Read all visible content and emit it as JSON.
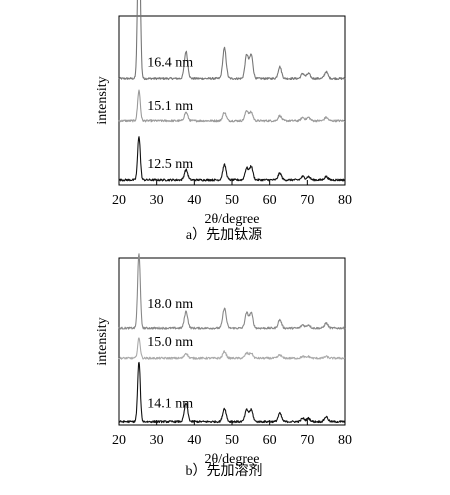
{
  "chart_data": [
    {
      "type": "line",
      "caption": "a）先加钛源",
      "xlabel": "2θ/degree",
      "ylabel": "intensity",
      "xlim": [
        20,
        80
      ],
      "xticks": [
        20,
        30,
        40,
        50,
        60,
        70,
        80
      ],
      "grid": false,
      "peaks": [
        25.3,
        37.8,
        48.0,
        53.9,
        55.1,
        62.7,
        68.8,
        70.3,
        75.0
      ],
      "series": [
        {
          "label": "16.4 nm",
          "color": "#777777",
          "base": 0.63,
          "heights": [
            0.98,
            0.16,
            0.18,
            0.14,
            0.14,
            0.07,
            0.03,
            0.03,
            0.04
          ]
        },
        {
          "label": "15.1 nm",
          "color": "#9a9a9a",
          "base": 0.38,
          "heights": [
            0.18,
            0.05,
            0.05,
            0.06,
            0.05,
            0.03,
            0.02,
            0.02,
            0.02
          ]
        },
        {
          "label": "12.5 nm",
          "color": "#111111",
          "base": 0.03,
          "heights": [
            0.26,
            0.06,
            0.09,
            0.07,
            0.08,
            0.04,
            0.02,
            0.02,
            0.02
          ]
        }
      ]
    },
    {
      "type": "line",
      "caption": "b）先加溶剂",
      "xlabel": "2θ/degree",
      "ylabel": "intensity",
      "xlim": [
        20,
        80
      ],
      "xticks": [
        20,
        30,
        40,
        50,
        60,
        70,
        80
      ],
      "grid": false,
      "peaks": [
        25.3,
        37.8,
        48.0,
        53.9,
        55.1,
        62.7,
        68.8,
        70.3,
        75.0
      ],
      "series": [
        {
          "label": "18.0 nm",
          "color": "#888888",
          "base": 0.58,
          "heights": [
            0.45,
            0.1,
            0.12,
            0.09,
            0.09,
            0.05,
            0.02,
            0.02,
            0.03
          ]
        },
        {
          "label": "15.0 nm",
          "color": "#aaaaaa",
          "base": 0.4,
          "heights": [
            0.12,
            0.03,
            0.04,
            0.03,
            0.03,
            0.02,
            0.01,
            0.01,
            0.01
          ]
        },
        {
          "label": "14.1 nm",
          "color": "#111111",
          "base": 0.02,
          "heights": [
            0.36,
            0.11,
            0.08,
            0.07,
            0.07,
            0.05,
            0.02,
            0.02,
            0.03
          ]
        }
      ]
    }
  ]
}
